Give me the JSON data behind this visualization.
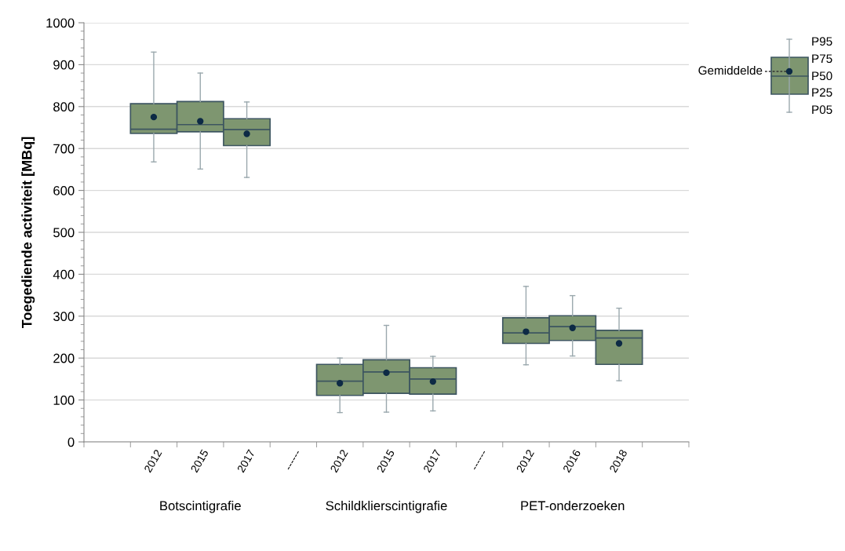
{
  "chart_data": {
    "type": "box",
    "ylabel": "Toegediende activiteit [MBq]",
    "categories": [
      "2012",
      "2015",
      "2017",
      "------",
      "2012",
      "2015",
      "2017",
      "------",
      "2012",
      "2016",
      "2018"
    ],
    "color": "#7e9670",
    "boxes": [
      {
        "low": 668,
        "q1": 736,
        "median": 746,
        "q3": 807,
        "high": 930,
        "mean": 775
      },
      {
        "low": 651,
        "q1": 740,
        "median": 757,
        "q3": 812,
        "high": 880,
        "mean": 765
      },
      {
        "low": 631,
        "q1": 707,
        "median": 745,
        "q3": 771,
        "high": 811,
        "mean": 735
      },
      null,
      {
        "low": 70,
        "q1": 111,
        "median": 145,
        "q3": 185,
        "high": 200,
        "mean": 140
      },
      {
        "low": 71,
        "q1": 116,
        "median": 167,
        "q3": 196,
        "high": 278,
        "mean": 165
      },
      {
        "low": 74,
        "q1": 114,
        "median": 150,
        "q3": 177,
        "high": 204,
        "mean": 144
      },
      null,
      {
        "low": 184,
        "q1": 235,
        "median": 260,
        "q3": 296,
        "high": 371,
        "mean": 263
      },
      {
        "low": 205,
        "q1": 242,
        "median": 275,
        "q3": 301,
        "high": 349,
        "mean": 272
      },
      {
        "low": 146,
        "q1": 185,
        "median": 248,
        "q3": 266,
        "high": 319,
        "mean": 235
      }
    ],
    "ylim": [
      0,
      1000
    ],
    "yticks": [
      0,
      100,
      200,
      300,
      400,
      500,
      600,
      700,
      800,
      900,
      1000
    ],
    "grid": "y",
    "annotations": [
      "Botscintigrafie",
      "Schildklierscintigrafie",
      "PET-onderzoeken",
      "P95",
      "P75",
      "P50",
      "P25",
      "P05",
      "Gemiddelde"
    ]
  }
}
